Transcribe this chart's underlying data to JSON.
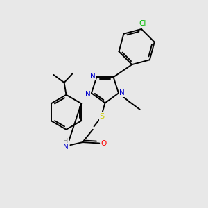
{
  "background_color": "#e8e8e8",
  "atom_colors": {
    "C": "#000000",
    "N": "#0000cc",
    "O": "#ff0000",
    "S": "#cccc00",
    "Cl": "#00bb00",
    "H": "#888888"
  },
  "figsize": [
    3.0,
    3.0
  ],
  "dpi": 100,
  "lw": 1.4,
  "fontsize": 7.5
}
